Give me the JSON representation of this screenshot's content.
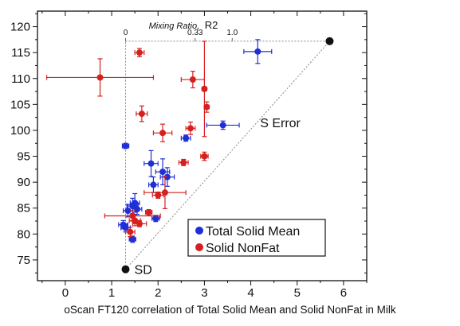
{
  "caption": "oScan FT120 correlation of Total Solid Mean and Solid NonFat in Milk",
  "chart_data": {
    "type": "scatter",
    "title": "",
    "xlabel": "",
    "ylabel": "",
    "xlim": [
      -0.6,
      6.5
    ],
    "ylim": [
      71,
      123
    ],
    "x_ticks": [
      0,
      1,
      2,
      3,
      4,
      5,
      6
    ],
    "y_ticks": [
      75,
      80,
      85,
      90,
      95,
      100,
      105,
      110,
      115,
      120
    ],
    "grid": false,
    "legend_position": "bottom-right",
    "series": [
      {
        "name": "Total Solid Mean",
        "color": "#1f2fd6",
        "points": [
          {
            "x": 4.15,
            "y": 115.2,
            "xerr": 0.3,
            "yerr": 2.3
          },
          {
            "x": 3.4,
            "y": 101.0,
            "xerr": 0.35,
            "yerr": 0.8
          },
          {
            "x": 2.6,
            "y": 98.5,
            "xerr": 0.1,
            "yerr": 0.6
          },
          {
            "x": 1.3,
            "y": 97.0,
            "xerr": 0.07,
            "yerr": 0.5
          },
          {
            "x": 1.85,
            "y": 93.6,
            "xerr": 0.15,
            "yerr": 2.5
          },
          {
            "x": 2.1,
            "y": 92.0,
            "xerr": 0.15,
            "yerr": 2.5
          },
          {
            "x": 2.2,
            "y": 91.0,
            "xerr": 0.15,
            "yerr": 1.8
          },
          {
            "x": 1.9,
            "y": 89.5,
            "xerr": 0.1,
            "yerr": 1.5
          },
          {
            "x": 1.5,
            "y": 86.0,
            "xerr": 0.1,
            "yerr": 1.8
          },
          {
            "x": 1.45,
            "y": 85.4,
            "xerr": 0.12,
            "yerr": 1.5
          },
          {
            "x": 1.55,
            "y": 84.8,
            "xerr": 0.1,
            "yerr": 1.0
          },
          {
            "x": 1.35,
            "y": 84.5,
            "xerr": 0.1,
            "yerr": 1.2
          },
          {
            "x": 1.95,
            "y": 83.0,
            "xerr": 0.08,
            "yerr": 0.6
          },
          {
            "x": 1.25,
            "y": 81.8,
            "xerr": 0.1,
            "yerr": 0.8
          },
          {
            "x": 1.3,
            "y": 81.2,
            "xerr": 0.1,
            "yerr": 0.8
          },
          {
            "x": 1.45,
            "y": 79.0,
            "xerr": 0.07,
            "yerr": 0.6
          }
        ]
      },
      {
        "name": "Solid NonFat",
        "color": "#d62020",
        "points": [
          {
            "x": 0.75,
            "y": 110.2,
            "xerr": 1.15,
            "yerr": 3.6
          },
          {
            "x": 1.6,
            "y": 115.0,
            "xerr": 0.1,
            "yerr": 0.8
          },
          {
            "x": 2.75,
            "y": 109.8,
            "xerr": 0.25,
            "yerr": 1.6
          },
          {
            "x": 3.0,
            "y": 108.0,
            "xerr": 0.05,
            "yerr": 9.2
          },
          {
            "x": 3.05,
            "y": 104.5,
            "xerr": 0.05,
            "yerr": 1.0
          },
          {
            "x": 1.65,
            "y": 103.2,
            "xerr": 0.12,
            "yerr": 1.5
          },
          {
            "x": 2.7,
            "y": 100.4,
            "xerr": 0.1,
            "yerr": 1.2
          },
          {
            "x": 2.1,
            "y": 99.5,
            "xerr": 0.2,
            "yerr": 1.7
          },
          {
            "x": 3.0,
            "y": 95.0,
            "xerr": 0.08,
            "yerr": 0.8
          },
          {
            "x": 2.55,
            "y": 93.8,
            "xerr": 0.1,
            "yerr": 0.6
          },
          {
            "x": 2.15,
            "y": 88.0,
            "xerr": 0.45,
            "yerr": 3.1
          },
          {
            "x": 2.0,
            "y": 87.5,
            "xerr": 0.12,
            "yerr": 0.6
          },
          {
            "x": 1.8,
            "y": 84.2,
            "xerr": 0.07,
            "yerr": 0.5
          },
          {
            "x": 1.45,
            "y": 83.5,
            "xerr": 0.6,
            "yerr": 1.0
          },
          {
            "x": 1.5,
            "y": 82.6,
            "xerr": 0.12,
            "yerr": 1.0
          },
          {
            "x": 1.6,
            "y": 82.0,
            "xerr": 0.15,
            "yerr": 0.6
          },
          {
            "x": 1.4,
            "y": 80.4,
            "xerr": 0.1,
            "yerr": 0.9
          }
        ]
      }
    ],
    "reference_markers": {
      "sd": {
        "label": "SD",
        "x": 1.3,
        "y": 73.2
      },
      "top_right": {
        "x": 5.7,
        "y": 117.2
      }
    },
    "annotations": {
      "s_error": {
        "text": "S Error",
        "x": 4.2,
        "y": 100.6
      },
      "mixing_ratio_italic": "Mixing Ratio,",
      "mixing_ratio_symbol": "R2",
      "mixing_ticks": [
        {
          "label": "0",
          "x": 1.3
        },
        {
          "label": "0.33",
          "x": 2.8
        },
        {
          "label": "1.0",
          "x": 3.6
        }
      ]
    }
  }
}
